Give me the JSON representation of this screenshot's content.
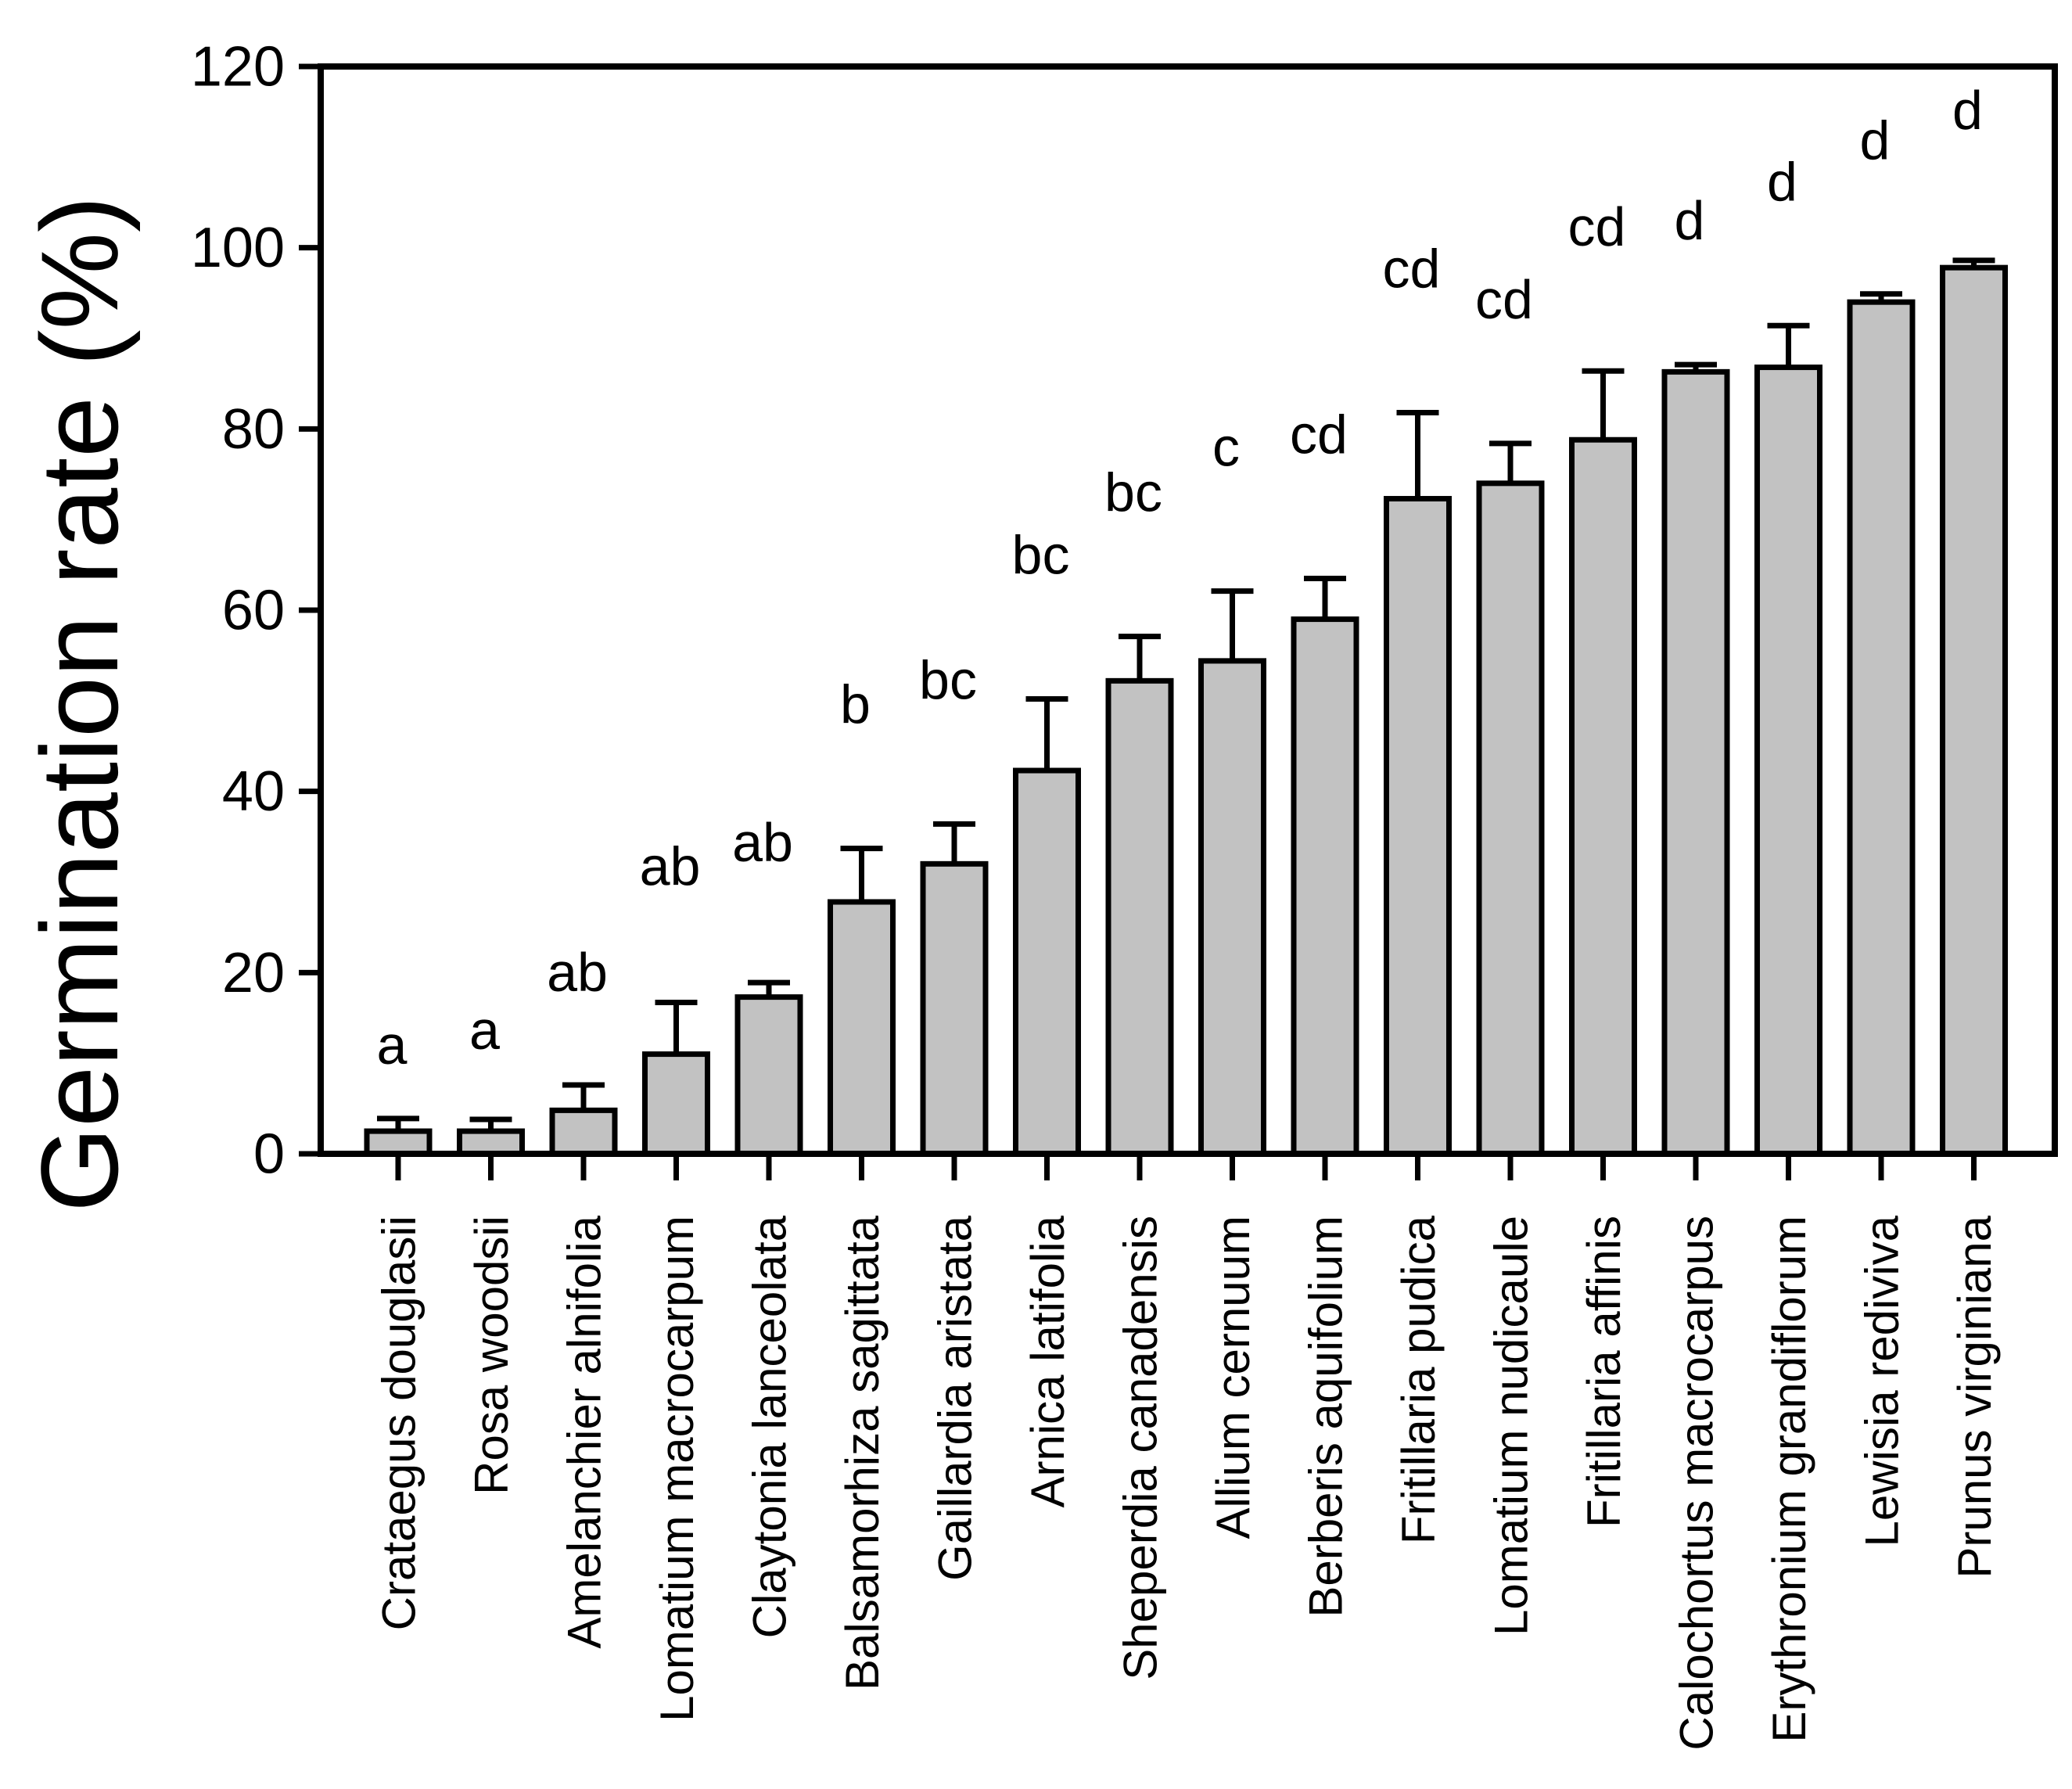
{
  "figure": {
    "background_color": "#ffffff",
    "axis_color": "#000000"
  },
  "chart_data": {
    "type": "bar",
    "title": "",
    "xlabel": "",
    "ylabel": "Germination rate (%)",
    "ylim": [
      0,
      120
    ],
    "yticks": [
      0,
      20,
      40,
      60,
      80,
      100,
      120
    ],
    "grid": false,
    "legend": "none",
    "frame": "full-box",
    "error_bars": "upper-only",
    "bar_fill": "#c2c2c2",
    "bar_stroke": "#000000",
    "categories": [
      "Crataegus douglasii",
      "Rosa woodsii",
      "Amelanchier alnifolia",
      "Lomatium macrocarpum",
      "Claytonia lanceolata",
      "Balsamorhiza sagittata",
      "Gaillardia aristata",
      "Arnica latifolia",
      "Sheperdia canadensis",
      "Allium cernuum",
      "Berberis aquifolium",
      "Fritillaria pudica",
      "Lomatium nudicaule",
      "Fritillaria affinis",
      "Calochortus macrocarpus",
      "Erythronium grandiflorum",
      "Lewisia rediviva",
      "Prunus virginiana"
    ],
    "values": [
      2.5,
      2.5,
      4.8,
      11.0,
      17.3,
      27.8,
      32.0,
      42.3,
      52.2,
      54.4,
      59.0,
      72.3,
      74.0,
      78.8,
      86.3,
      86.8,
      94.0,
      97.8
    ],
    "errors": [
      1.4,
      1.3,
      2.8,
      5.7,
      1.6,
      5.9,
      4.4,
      7.9,
      4.9,
      7.7,
      4.5,
      9.5,
      4.4,
      7.6,
      0.8,
      4.6,
      0.9,
      0.8
    ],
    "sig_letters": [
      "a",
      "a",
      "ab",
      "ab",
      "ab",
      "b",
      "bc",
      "bc",
      "bc",
      "c",
      "cd",
      "cd",
      "cd",
      "cd",
      "d",
      "d",
      "d",
      "d"
    ]
  }
}
